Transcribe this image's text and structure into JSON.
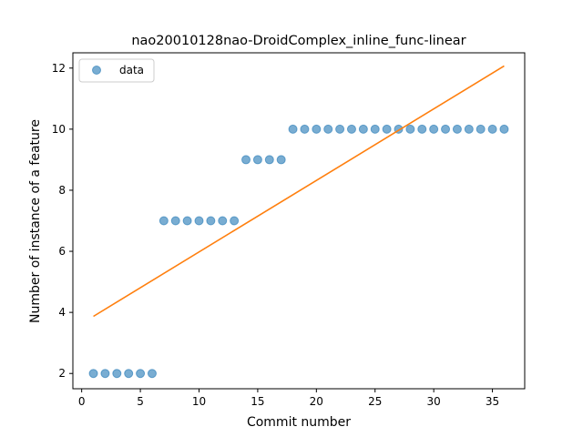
{
  "chart_data": {
    "type": "scatter",
    "title": "nao20010128nao-DroidComplex_inline_func-linear",
    "xlabel": "Commit number",
    "ylabel": "Number of instance of a feature",
    "xlim": [
      -0.75,
      37.75
    ],
    "ylim": [
      1.5,
      12.5
    ],
    "xticks": [
      0,
      5,
      10,
      15,
      20,
      25,
      30,
      35
    ],
    "yticks": [
      2,
      4,
      6,
      8,
      10,
      12
    ],
    "grid": false,
    "legend": {
      "placement": "upper-left",
      "entries": [
        "data"
      ]
    },
    "series": [
      {
        "name": "data",
        "kind": "scatter",
        "color": "#1f77b4",
        "x": [
          1,
          2,
          3,
          4,
          5,
          6,
          7,
          8,
          9,
          10,
          11,
          12,
          13,
          14,
          15,
          16,
          17,
          18,
          19,
          20,
          21,
          22,
          23,
          24,
          25,
          26,
          27,
          28,
          29,
          30,
          31,
          32,
          33,
          34,
          35,
          36
        ],
        "y": [
          2,
          2,
          2,
          2,
          2,
          2,
          7,
          7,
          7,
          7,
          7,
          7,
          7,
          9,
          9,
          9,
          9,
          10,
          10,
          10,
          10,
          10,
          10,
          10,
          10,
          10,
          10,
          10,
          10,
          10,
          10,
          10,
          10,
          10,
          10,
          10
        ]
      },
      {
        "kind": "line",
        "color": "#ff7f0e",
        "x": [
          1,
          36
        ],
        "y": [
          3.87,
          12.07
        ]
      }
    ]
  }
}
